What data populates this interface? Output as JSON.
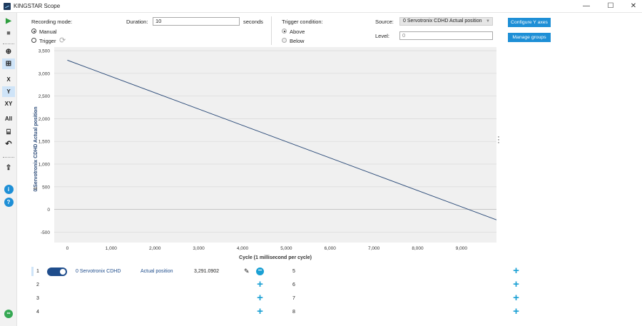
{
  "window": {
    "title": "KINGSTAR Scope"
  },
  "toolbar": {
    "x_label": "X",
    "y_label": "Y",
    "xy_label": "XY",
    "all_label": "All"
  },
  "recording": {
    "label": "Recording mode:",
    "option_manual": "Manual",
    "option_trigger": "Trigger",
    "selected": "Manual"
  },
  "duration": {
    "label": "Duration:",
    "value": "10",
    "unit": "seconds"
  },
  "trigger": {
    "label": "Trigger condition:",
    "option_above": "Above",
    "option_below": "Below",
    "selected": "Above"
  },
  "source": {
    "label": "Source:",
    "value": "0 Servotronix CDHD Actual position"
  },
  "level": {
    "label": "Level:",
    "placeholder": "0"
  },
  "buttons": {
    "configure_y_axes": "Configure Y axes",
    "manage_groups": "Manage groups"
  },
  "chart_data": {
    "type": "line",
    "xlabel": "Cycle (1 millisecond per cycle)",
    "ylabel": "0 Servotronix CDHD Actual position",
    "ylabel_prefix": "1",
    "xlim": [
      -300,
      9800
    ],
    "ylim": [
      -730,
      3580
    ],
    "x_ticks": [
      0,
      1000,
      2000,
      3000,
      4000,
      5000,
      6000,
      7000,
      8000,
      9000
    ],
    "x_tick_labels": [
      "0",
      "1,000",
      "2,000",
      "3,000",
      "4,000",
      "5,000",
      "6,000",
      "7,000",
      "8,000",
      "9,000"
    ],
    "y_ticks": [
      3500,
      3000,
      2500,
      2000,
      1500,
      1000,
      500,
      0,
      -500
    ],
    "y_tick_labels": [
      "3,500",
      "3,000",
      "2,500",
      "2,000",
      "1,500",
      "1,000",
      "500",
      "0",
      "-500"
    ],
    "grid": true,
    "series": [
      {
        "color": "#2e4d7a",
        "x": [
          0,
          9800
        ],
        "y": [
          3291,
          -230
        ]
      }
    ]
  },
  "channels": [
    {
      "number": "1",
      "device": "0 Servotronix CDHD",
      "signal": "Actual position",
      "value": "3,291.0902",
      "enabled": true
    },
    {
      "number": "2"
    },
    {
      "number": "3"
    },
    {
      "number": "4"
    },
    {
      "number": "5"
    },
    {
      "number": "6"
    },
    {
      "number": "7"
    },
    {
      "number": "8"
    }
  ]
}
